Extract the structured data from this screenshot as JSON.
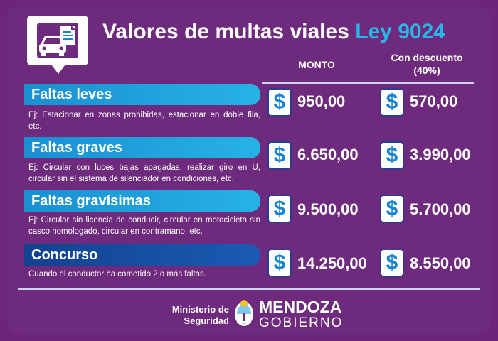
{
  "header": {
    "title_main": "Valores de multas viales",
    "title_law": "Ley 9024",
    "icon": "car-document-icon"
  },
  "columns": {
    "monto": "MONTO",
    "descuento": "Con descuento (40%)"
  },
  "currency_symbol": "$",
  "rows": [
    {
      "label": "Faltas leves",
      "desc": "Ej: Estacionar en zonas prohibidas, estacionar en doble fila, etc.",
      "monto": "950,00",
      "descuento": "570,00"
    },
    {
      "label": "Faltas graves",
      "desc": "Ej: Circular con luces bajas apagadas, realizar giro en U, circular sin el sistema de silenciador en condiciones, etc.",
      "monto": "6.650,00",
      "descuento": "3.990,00"
    },
    {
      "label": "Faltas gravísimas",
      "desc": "Ej: Circular sin licencia de conducir, circular en motocicleta sin casco homologado, circular en contramano, etc.",
      "monto": "9.500,00",
      "descuento": "5.700,00"
    },
    {
      "label": "Concurso",
      "desc": "Cuando el conductor ha cometido 2 o más faltas.",
      "monto": "14.250,00",
      "descuento": "8.550,00"
    }
  ],
  "footer": {
    "ministry": "Ministerio de Seguridad",
    "gov_name": "MENDOZA",
    "gov_sub": "GOBIERNO"
  },
  "colors": {
    "background": "#6b2579",
    "accent_blue": "#29b7ea",
    "bar_blue": "#1a8fd1",
    "bar_navy": "#12428f"
  }
}
